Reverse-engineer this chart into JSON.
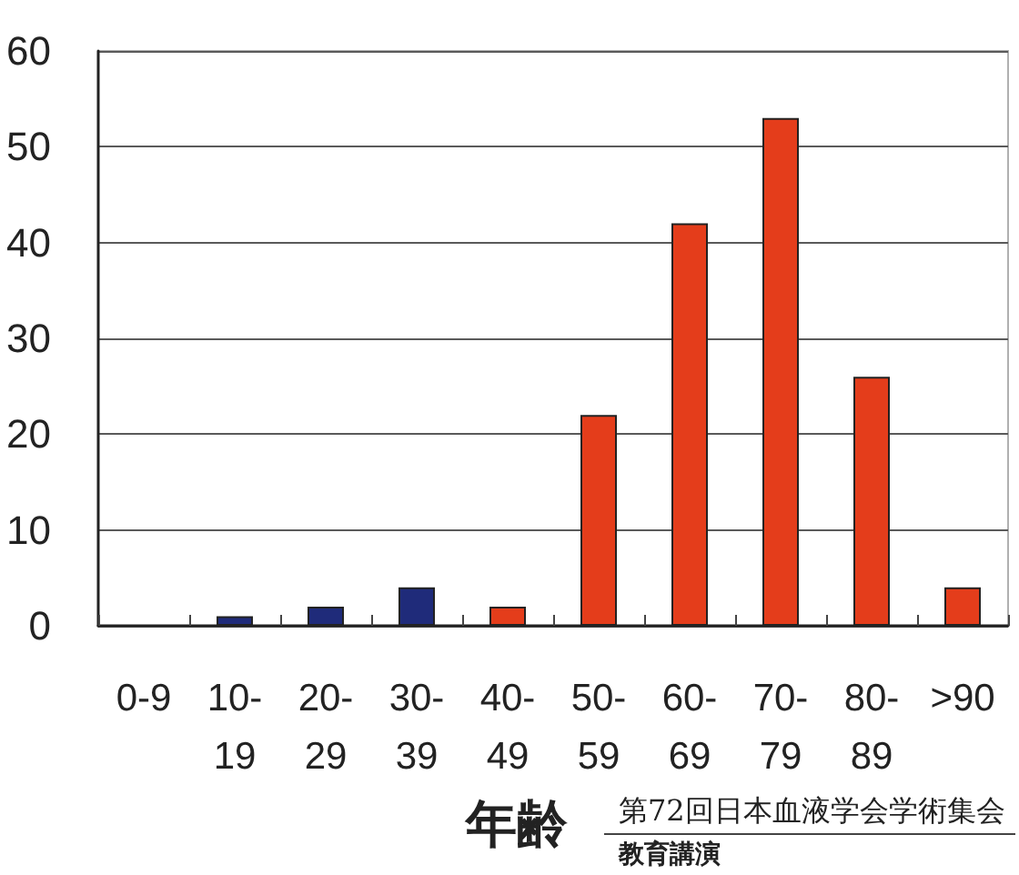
{
  "chart_data": {
    "type": "bar",
    "xlabel": "年齢",
    "categories": [
      "0-9",
      "10-19",
      "20-29",
      "30-39",
      "40-49",
      "50-59",
      "60-69",
      "70-79",
      "80-89",
      ">90"
    ],
    "values": [
      0,
      1,
      2,
      4,
      2,
      22,
      42,
      53,
      26,
      4
    ],
    "colors": [
      "#1f2b7a",
      "#1f2b7a",
      "#1f2b7a",
      "#1f2b7a",
      "#e43d1b",
      "#e43d1b",
      "#e43d1b",
      "#e43d1b",
      "#e43d1b",
      "#e43d1b"
    ],
    "ylim": [
      0,
      60
    ],
    "yticks": [
      0,
      10,
      20,
      30,
      40,
      50,
      60
    ],
    "grid": "y",
    "annotations": [
      "第72回日本血液学会学術集会",
      "教育講演"
    ]
  }
}
